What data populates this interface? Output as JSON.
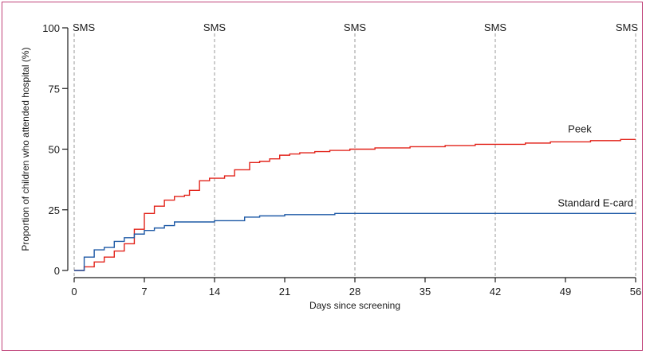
{
  "chart_data": {
    "type": "line",
    "title": "",
    "xlabel": "Days since screening",
    "ylabel": "Proportion of children who attended hospital (%)",
    "xlim": [
      0,
      56
    ],
    "ylim": [
      0,
      100
    ],
    "x_ticks": [
      0,
      7,
      14,
      21,
      28,
      35,
      42,
      49,
      56
    ],
    "y_ticks": [
      0,
      25,
      50,
      75,
      100
    ],
    "grid": false,
    "legend": "inline labels at right end of series",
    "reference_lines": {
      "label": "SMS",
      "days": [
        0,
        14,
        28,
        42,
        56
      ],
      "style": "dashed",
      "color": "#9a9a9a"
    },
    "series": [
      {
        "name": "Peek",
        "color": "#e2231a",
        "step": true,
        "points": [
          [
            0,
            0
          ],
          [
            1,
            0
          ],
          [
            1,
            1.5
          ],
          [
            2,
            1.5
          ],
          [
            2,
            3.5
          ],
          [
            3,
            3.5
          ],
          [
            3,
            5.5
          ],
          [
            4,
            5.5
          ],
          [
            4,
            8
          ],
          [
            5,
            8
          ],
          [
            5,
            11
          ],
          [
            6,
            11
          ],
          [
            6,
            17
          ],
          [
            7,
            17
          ],
          [
            7,
            23.5
          ],
          [
            8,
            23.5
          ],
          [
            8,
            26.5
          ],
          [
            9,
            26.5
          ],
          [
            9,
            29
          ],
          [
            10,
            29
          ],
          [
            10,
            30.5
          ],
          [
            11,
            30.5
          ],
          [
            11,
            31
          ],
          [
            11.5,
            31
          ],
          [
            11.5,
            33
          ],
          [
            12.5,
            33
          ],
          [
            12.5,
            37
          ],
          [
            13.5,
            37
          ],
          [
            13.5,
            38
          ],
          [
            15,
            38
          ],
          [
            15,
            39
          ],
          [
            16,
            39
          ],
          [
            16,
            41.5
          ],
          [
            17.5,
            41.5
          ],
          [
            17.5,
            44.5
          ],
          [
            18.5,
            44.5
          ],
          [
            18.5,
            45
          ],
          [
            19.5,
            45
          ],
          [
            19.5,
            46
          ],
          [
            20.5,
            46
          ],
          [
            20.5,
            47.5
          ],
          [
            21.5,
            47.5
          ],
          [
            21.5,
            48
          ],
          [
            22.5,
            48
          ],
          [
            22.5,
            48.5
          ],
          [
            24,
            48.5
          ],
          [
            24,
            49
          ],
          [
            25.5,
            49
          ],
          [
            25.5,
            49.5
          ],
          [
            27.5,
            49.5
          ],
          [
            27.5,
            50
          ],
          [
            30,
            50
          ],
          [
            30,
            50.5
          ],
          [
            33.5,
            50.5
          ],
          [
            33.5,
            51
          ],
          [
            37,
            51
          ],
          [
            37,
            51.5
          ],
          [
            40,
            51.5
          ],
          [
            40,
            52
          ],
          [
            45,
            52
          ],
          [
            45,
            52.5
          ],
          [
            47.5,
            52.5
          ],
          [
            47.5,
            53
          ],
          [
            51.5,
            53
          ],
          [
            51.5,
            53.5
          ],
          [
            54.5,
            53.5
          ],
          [
            54.5,
            54
          ],
          [
            56,
            54
          ]
        ]
      },
      {
        "name": "Standard E-card",
        "color": "#1f5aa6",
        "step": true,
        "points": [
          [
            0,
            0
          ],
          [
            1,
            0
          ],
          [
            1,
            5.5
          ],
          [
            2,
            5.5
          ],
          [
            2,
            8.5
          ],
          [
            3,
            8.5
          ],
          [
            3,
            9.5
          ],
          [
            4,
            9.5
          ],
          [
            4,
            12
          ],
          [
            5,
            12
          ],
          [
            5,
            13.5
          ],
          [
            6,
            13.5
          ],
          [
            6,
            15
          ],
          [
            7,
            15
          ],
          [
            7,
            16.5
          ],
          [
            8,
            16.5
          ],
          [
            8,
            17.5
          ],
          [
            9,
            17.5
          ],
          [
            9,
            18.5
          ],
          [
            10,
            18.5
          ],
          [
            10,
            20
          ],
          [
            14,
            20
          ],
          [
            14,
            20.5
          ],
          [
            17,
            20.5
          ],
          [
            17,
            22
          ],
          [
            18.5,
            22
          ],
          [
            18.5,
            22.5
          ],
          [
            21,
            22.5
          ],
          [
            21,
            23
          ],
          [
            26,
            23
          ],
          [
            26,
            23.5
          ],
          [
            56,
            23.5
          ]
        ]
      }
    ]
  }
}
